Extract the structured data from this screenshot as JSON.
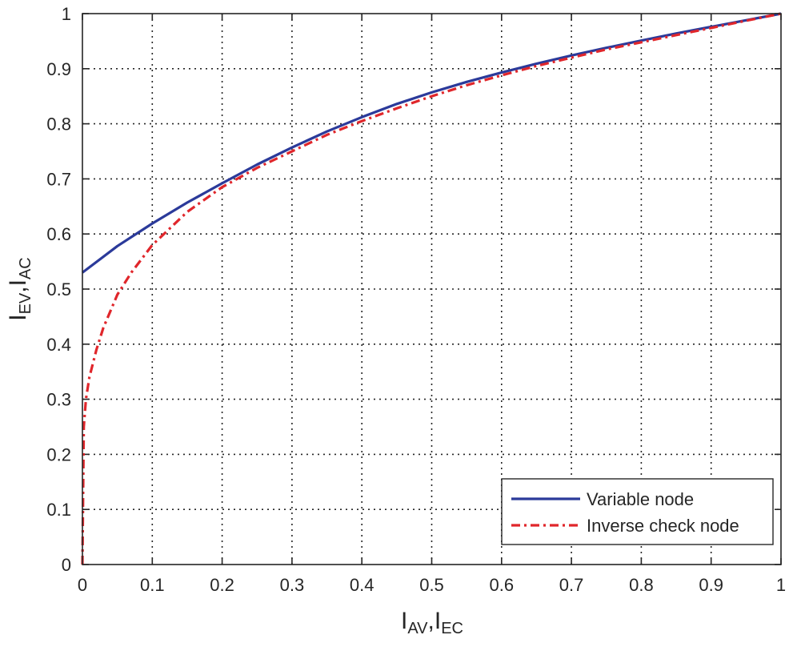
{
  "chart_data": {
    "type": "line",
    "title": "",
    "xlabel": {
      "parts": [
        {
          "t": "I"
        },
        {
          "t": "AV",
          "sub": true
        },
        {
          "t": ",I"
        },
        {
          "t": "EC",
          "sub": true
        }
      ]
    },
    "ylabel": {
      "parts": [
        {
          "t": "I"
        },
        {
          "t": "EV",
          "sub": true
        },
        {
          "t": ",I"
        },
        {
          "t": "AC",
          "sub": true
        }
      ]
    },
    "xlim": [
      0,
      1
    ],
    "ylim": [
      0,
      1
    ],
    "xticks": [
      "0",
      "0.1",
      "0.2",
      "0.3",
      "0.4",
      "0.5",
      "0.6",
      "0.7",
      "0.8",
      "0.9",
      "1"
    ],
    "yticks": [
      "0",
      "0.1",
      "0.2",
      "0.3",
      "0.4",
      "0.5",
      "0.6",
      "0.7",
      "0.8",
      "0.9",
      "1"
    ],
    "grid": true,
    "legend_position": "bottom-right",
    "series": [
      {
        "name": "Variable node",
        "color": "#2b3a9a",
        "style": "solid",
        "x": [
          0,
          0.05,
          0.1,
          0.15,
          0.2,
          0.25,
          0.3,
          0.35,
          0.4,
          0.45,
          0.5,
          0.55,
          0.6,
          0.65,
          0.7,
          0.75,
          0.8,
          0.85,
          0.9,
          0.95,
          1.0
        ],
        "y": [
          0.53,
          0.578,
          0.619,
          0.657,
          0.692,
          0.726,
          0.757,
          0.786,
          0.812,
          0.836,
          0.857,
          0.876,
          0.893,
          0.909,
          0.924,
          0.938,
          0.951,
          0.964,
          0.976,
          0.988,
          1.0
        ]
      },
      {
        "name": "Inverse check node",
        "color": "#e0262b",
        "style": "dashdot",
        "x": [
          0,
          0.002,
          0.005,
          0.01,
          0.02,
          0.03,
          0.05,
          0.07,
          0.1,
          0.15,
          0.2,
          0.25,
          0.3,
          0.35,
          0.4,
          0.45,
          0.5,
          0.55,
          0.6,
          0.65,
          0.7,
          0.75,
          0.8,
          0.85,
          0.9,
          0.95,
          1.0
        ],
        "y": [
          0,
          0.25,
          0.3,
          0.34,
          0.39,
          0.43,
          0.49,
          0.53,
          0.58,
          0.64,
          0.685,
          0.72,
          0.75,
          0.78,
          0.805,
          0.828,
          0.85,
          0.87,
          0.888,
          0.905,
          0.92,
          0.935,
          0.948,
          0.961,
          0.974,
          0.987,
          1.0
        ]
      }
    ]
  }
}
